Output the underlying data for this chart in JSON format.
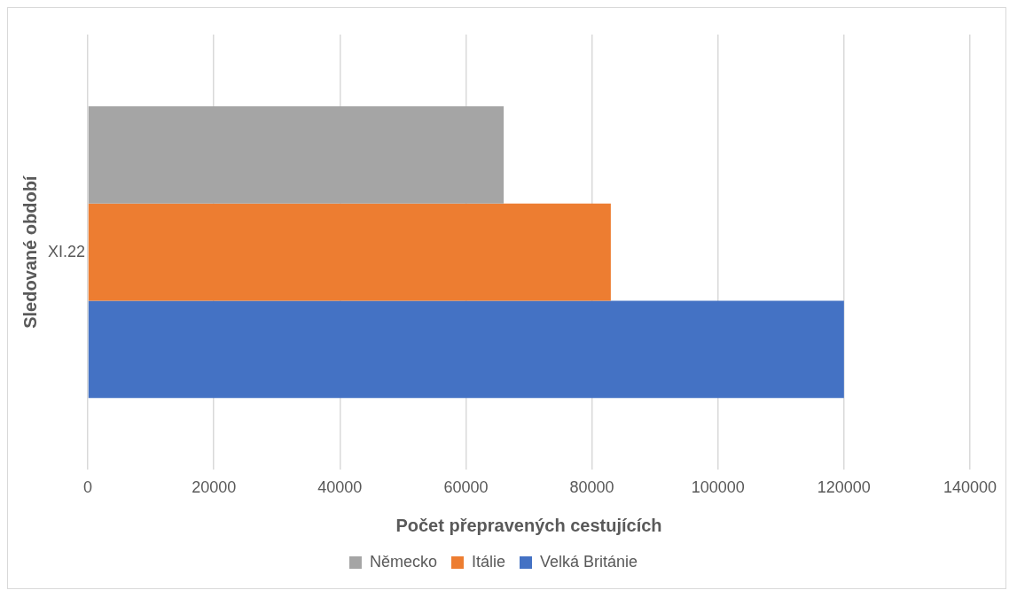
{
  "chart_data": {
    "type": "bar",
    "orientation": "horizontal",
    "xlabel": "Počet přepravených cestujících",
    "ylabel": "Sledované období",
    "categories": [
      "XI.22"
    ],
    "series": [
      {
        "name": "Německo",
        "color": "#a5a5a5",
        "values": [
          66000
        ]
      },
      {
        "name": "Itálie",
        "color": "#ed7d31",
        "values": [
          83000
        ]
      },
      {
        "name": "Velká Británie",
        "color": "#4472c4",
        "values": [
          120000
        ]
      }
    ],
    "xlim": [
      0,
      140000
    ],
    "xticks": [
      0,
      20000,
      40000,
      60000,
      80000,
      100000,
      120000,
      140000
    ],
    "grid": "x",
    "legend": "bottom"
  }
}
